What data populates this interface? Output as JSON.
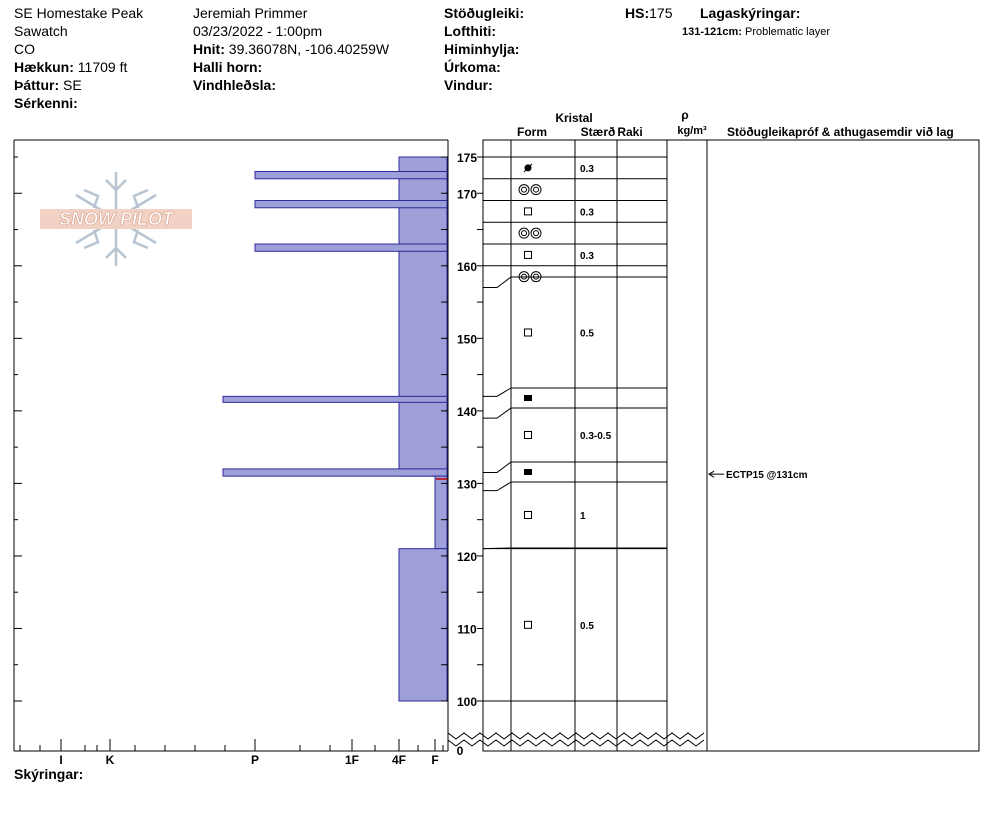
{
  "header": {
    "location": "SE Homestake Peak",
    "range": "Sawatch",
    "state": "CO",
    "elevation_label": "Hækkun:",
    "elevation_value": "11709 ft",
    "aspect_label": "Þáttur:",
    "aspect_value": "SE",
    "features_label": "Sérkenni:",
    "observer": "Jeremiah Primmer",
    "datetime": "03/23/2022 - 1:00pm",
    "coords_label": "Hnit:",
    "coords_value": "39.36078N, -106.40259W",
    "slope_label": "Halli horn:",
    "wind_loading_label": "Vindhleðsla:",
    "stability_label": "Stöðugleiki:",
    "air_temp_label": "Lofthiti:",
    "sky_label": "Himinhylja:",
    "precip_label": "Úrkoma:",
    "wind_label": "Vindur:",
    "hs_label": "HS:",
    "hs_value": "175",
    "legend_title": "Lagaskýringar:",
    "layer_note_range": "131-121cm:",
    "layer_note_text": "Problematic layer"
  },
  "columns": {
    "crystal": "Kristal",
    "form": "Form",
    "size": "Stærð",
    "moisture": "Raki",
    "density_symbol": "ρ",
    "density_unit": "kg/m³",
    "tests": "Stöðugleikapróf & athugasemdir við lag"
  },
  "logo_text": "SNOW PILOT",
  "footer": {
    "notes_label": "Skýringar:"
  },
  "chart_data": {
    "type": "snow-profile",
    "depth_axis": {
      "ticks": [
        100,
        110,
        120,
        130,
        140,
        150,
        160,
        170,
        175
      ],
      "range": [
        95,
        175
      ],
      "break_value": 0
    },
    "hardness_axis": {
      "labels": [
        {
          "label": "I",
          "level": 1
        },
        {
          "label": "K",
          "level": 2
        },
        {
          "label": "P",
          "level": 3
        },
        {
          "label": "1F",
          "level": 4
        },
        {
          "label": "4F",
          "level": 5
        },
        {
          "label": "F",
          "level": 6
        }
      ]
    },
    "hardness_bars": [
      {
        "top": 175,
        "bottom": 131,
        "hardness": "4F"
      },
      {
        "top": 173,
        "bottom": 172,
        "hardness": "P"
      },
      {
        "top": 169,
        "bottom": 168,
        "hardness": "P"
      },
      {
        "top": 163,
        "bottom": 162,
        "hardness": "P"
      },
      {
        "top": 142,
        "bottom": 141.5,
        "hardness": "I-P"
      },
      {
        "top": 132,
        "bottom": 131,
        "hardness": "I-P"
      },
      {
        "top": 131,
        "bottom": 121,
        "hardness": "4F-F"
      },
      {
        "top": 121,
        "bottom": 100,
        "hardness": "4F"
      }
    ],
    "layers": [
      {
        "top": 175,
        "bottom": 172,
        "form": "rounded-icon",
        "size": "0.3"
      },
      {
        "top": 172,
        "bottom": 169,
        "form": "melt-forms-icon",
        "size": ""
      },
      {
        "top": 169,
        "bottom": 166,
        "form": "faceted-icon",
        "size": "0.3"
      },
      {
        "top": 166,
        "bottom": 163,
        "form": "melt-forms-icon",
        "size": ""
      },
      {
        "top": 163,
        "bottom": 160,
        "form": "faceted-icon",
        "size": "0.3"
      },
      {
        "top": 160,
        "bottom": 157,
        "form": "melt-forms-icon",
        "size": ""
      },
      {
        "top": 157,
        "bottom": 142,
        "form": "faceted-icon",
        "size": "0.5"
      },
      {
        "top": 142,
        "bottom": 139,
        "form": "solid-faceted-icon",
        "size": ""
      },
      {
        "top": 139,
        "bottom": 131.5,
        "form": "faceted-icon",
        "size": "0.3-0.5"
      },
      {
        "top": 131.5,
        "bottom": 129,
        "form": "solid-faceted-icon",
        "size": ""
      },
      {
        "top": 129,
        "bottom": 121,
        "form": "faceted-icon",
        "size": "1"
      },
      {
        "top": 121,
        "bottom": 100,
        "form": "faceted-icon",
        "size": "0.5"
      }
    ],
    "tests": [
      {
        "depth": 131,
        "text": "ECTP15 @131cm"
      }
    ]
  }
}
